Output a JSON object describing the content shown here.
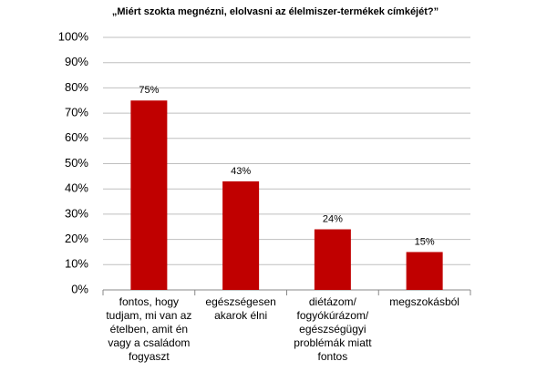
{
  "chart_data": {
    "type": "bar",
    "title": "„Miért szokta megnézni, elolvasni az élelmiszer-termékek címkéjét?”",
    "categories": [
      "fontos, hogy\ntudjam, mi van az\nételben, amit én\nvagy a családom\nfogyaszt",
      "egészségesen\nakarok élni",
      "diétázom/\nfogyókúrázom/\negészségügyi\nproblémák miatt\nfontos",
      "megszokásból"
    ],
    "values": [
      75,
      43,
      24,
      15
    ],
    "value_labels": [
      "75%",
      "43%",
      "24%",
      "15%"
    ],
    "color": "#c00000",
    "ylim": [
      0,
      100
    ],
    "yticks": [
      {
        "value": 0,
        "label": "0%"
      },
      {
        "value": 10,
        "label": "10%"
      },
      {
        "value": 20,
        "label": "20%"
      },
      {
        "value": 30,
        "label": "30%"
      },
      {
        "value": 40,
        "label": "40%"
      },
      {
        "value": 50,
        "label": "50%"
      },
      {
        "value": 60,
        "label": "60%"
      },
      {
        "value": 70,
        "label": "70%"
      },
      {
        "value": 80,
        "label": "80%"
      },
      {
        "value": 90,
        "label": "90%"
      },
      {
        "value": 100,
        "label": "100%"
      }
    ],
    "grid": true
  }
}
